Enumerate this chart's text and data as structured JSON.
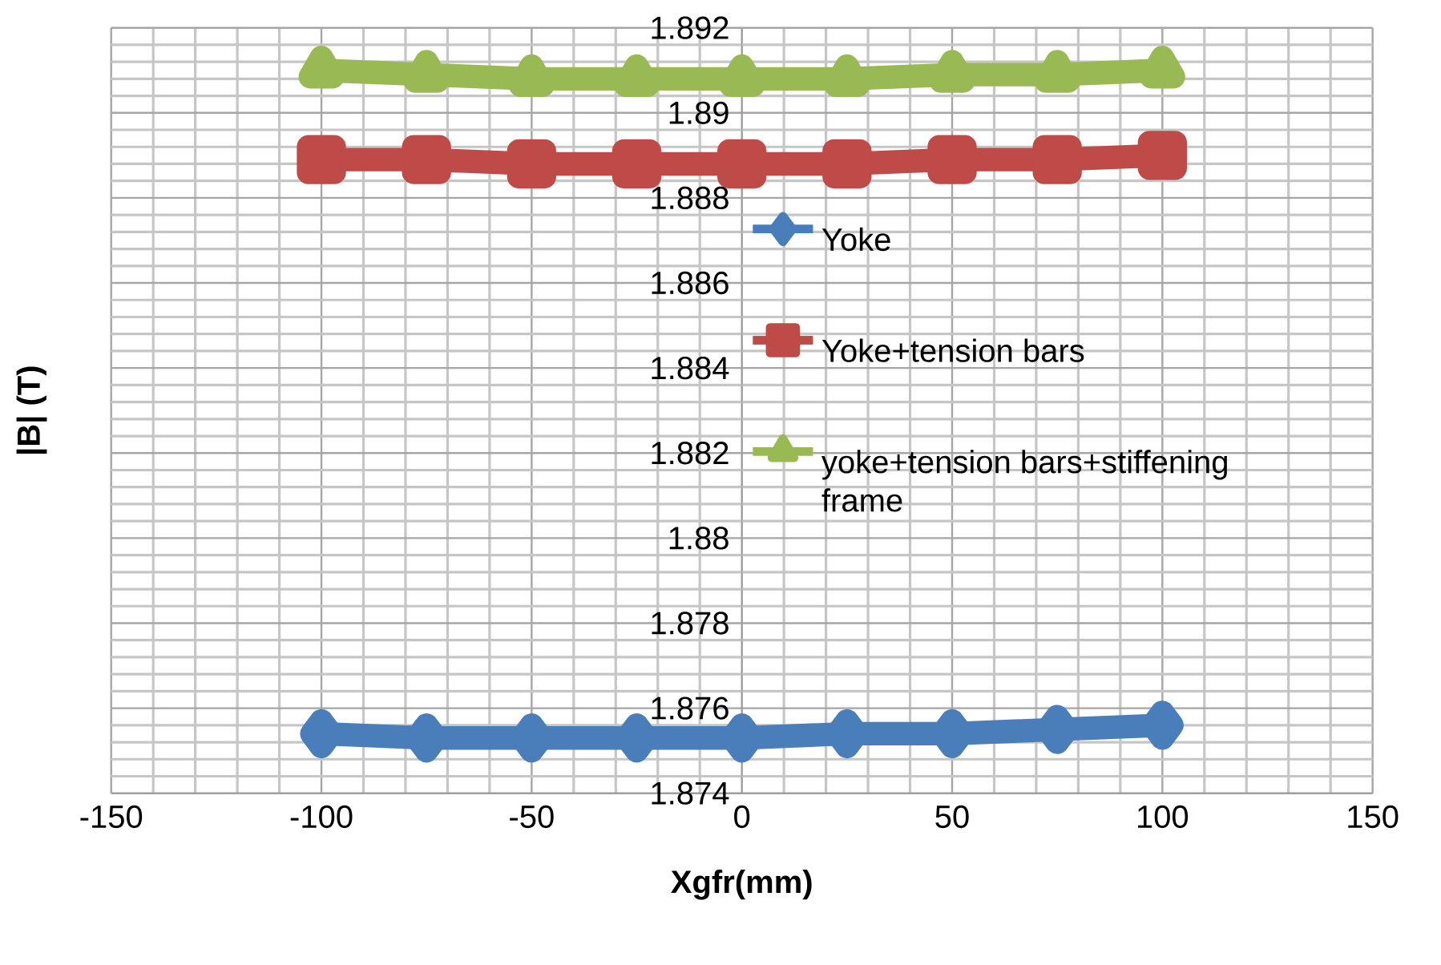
{
  "chart_data": {
    "type": "line",
    "xlabel": "Xgfr(mm)",
    "ylabel": "|B| (T)",
    "xlim": [
      -150,
      150
    ],
    "xticks": [
      -150,
      -100,
      -50,
      0,
      50,
      100,
      150
    ],
    "ylim": [
      1.874,
      1.892
    ],
    "yticks": [
      1.874,
      1.876,
      1.878,
      1.88,
      1.882,
      1.884,
      1.886,
      1.888,
      1.89,
      1.892
    ],
    "grid": true,
    "legend": "right",
    "line_style": "solid",
    "series": [
      {
        "name": "Yoke",
        "color": "#4a7ebb",
        "marker": "diamond",
        "x": [
          -100,
          -75,
          -50,
          -25,
          0,
          25,
          50,
          75,
          100
        ],
        "values": [
          1.8754,
          1.8753,
          1.8753,
          1.8753,
          1.8753,
          1.8754,
          1.8754,
          1.8755,
          1.8756
        ]
      },
      {
        "name": "Yoke+tension bars",
        "color": "#be4b48",
        "marker": "square",
        "x": [
          -100,
          -75,
          -50,
          -25,
          0,
          25,
          50,
          75,
          100
        ],
        "values": [
          1.8889,
          1.8889,
          1.8888,
          1.8888,
          1.8888,
          1.8888,
          1.8889,
          1.8889,
          1.889
        ]
      },
      {
        "name": "yoke+tension bars+stiffening frame",
        "color": "#98b954",
        "marker": "triangle",
        "x": [
          -100,
          -75,
          -50,
          -25,
          0,
          25,
          50,
          75,
          100
        ],
        "values": [
          1.891,
          1.8909,
          1.8908,
          1.8908,
          1.8908,
          1.8908,
          1.8909,
          1.8909,
          1.891
        ]
      }
    ]
  }
}
